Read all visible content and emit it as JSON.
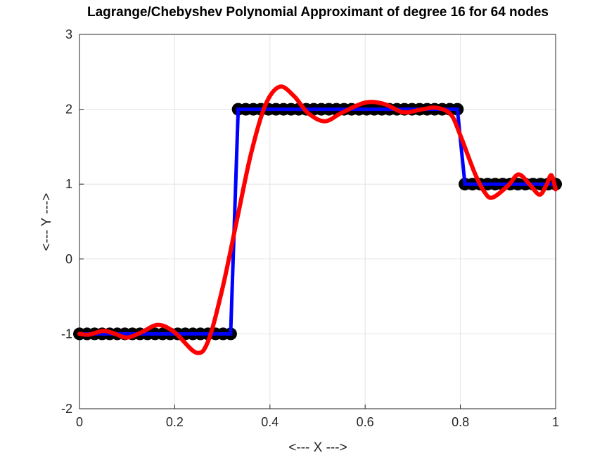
{
  "chart_data": {
    "type": "line",
    "title": "Lagrange/Chebyshev Polynomial Approximant of degree 16 for 64 nodes",
    "xlabel": "<--- X --->",
    "ylabel": "<--- Y --->",
    "xlim": [
      0,
      1
    ],
    "ylim": [
      -2,
      3
    ],
    "xticks": [
      0,
      0.2,
      0.4,
      0.6,
      0.8,
      1
    ],
    "xtick_labels": [
      "0",
      "0.2",
      "0.4",
      "0.6",
      "0.8",
      "1"
    ],
    "yticks": [
      -2,
      -1,
      0,
      1,
      2,
      3
    ],
    "ytick_labels": [
      "-2",
      "-1",
      "0",
      "1",
      "2",
      "3"
    ],
    "grid": true,
    "nodes": {
      "count": 64,
      "x_range": [
        0,
        1
      ],
      "step_function": [
        {
          "x_max": 0.3333,
          "y": -1
        },
        {
          "x_max": 0.8,
          "y": 2
        },
        {
          "x_max": 1,
          "y": 1
        }
      ],
      "marker_color": "#000000",
      "line_color": "#0000ff"
    },
    "approximant": {
      "color": "#ff0000",
      "x": [
        0,
        0.02,
        0.05,
        0.075,
        0.1,
        0.13,
        0.165,
        0.2,
        0.245,
        0.27,
        0.3,
        0.33,
        0.36,
        0.39,
        0.42,
        0.45,
        0.48,
        0.515,
        0.55,
        0.6,
        0.64,
        0.68,
        0.72,
        0.75,
        0.78,
        0.8,
        0.83,
        0.85,
        0.867,
        0.9,
        0.922,
        0.945,
        0.966,
        0.98,
        0.991,
        1.0
      ],
      "y": [
        -1.0,
        -1.01,
        -0.96,
        -1.0,
        -1.05,
        -0.98,
        -0.88,
        -0.98,
        -1.25,
        -1.1,
        -0.4,
        0.5,
        1.4,
        2.05,
        2.3,
        2.18,
        1.95,
        1.84,
        1.95,
        2.09,
        2.07,
        1.96,
        2.0,
        2.02,
        1.93,
        1.65,
        1.15,
        0.9,
        0.82,
        0.98,
        1.13,
        1.0,
        0.86,
        0.98,
        1.12,
        0.93
      ]
    }
  }
}
